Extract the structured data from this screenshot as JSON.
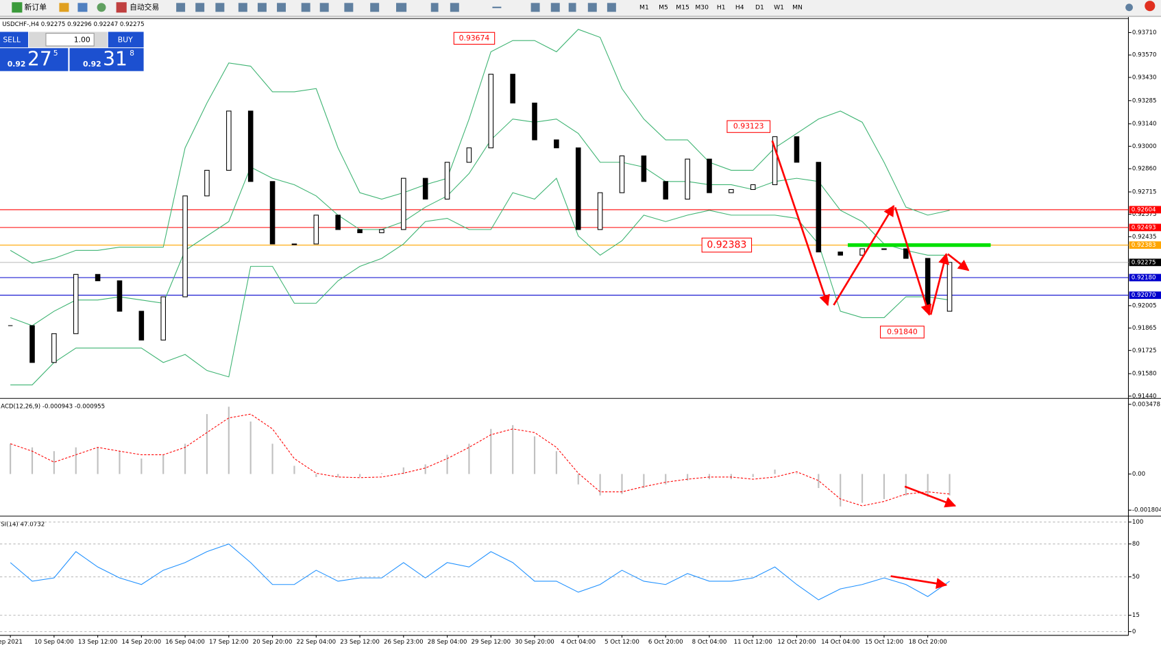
{
  "toolbar": {
    "new_order": "新订单",
    "auto_trading": "自动交易",
    "timeframes": [
      "M1",
      "M5",
      "M15",
      "M30",
      "H1",
      "H4",
      "D1",
      "W1",
      "MN"
    ]
  },
  "chart_header": "USDCHF-,H4  0.92275 0.92296 0.92247 0.92275",
  "trade_panel": {
    "sell": "SELL",
    "volume": "1.00",
    "buy": "BUY",
    "bid_prefix": "0.92",
    "bid_big": "27",
    "bid_small": "5",
    "ask_prefix": "0.92",
    "ask_big": "31",
    "ask_small": "8"
  },
  "chart_data": [
    {
      "type": "candlestick",
      "categories": [
        "ep 2021",
        null,
        "10 Sep 04:00",
        null,
        "13 Sep 12:00",
        null,
        "14 Sep 20:00",
        null,
        "16 Sep 04:00",
        null,
        "17 Sep 12:00",
        null,
        "20 Sep 20:00",
        null,
        "22 Sep 04:00",
        null,
        "23 Sep 12:00",
        null,
        "26 Sep 23:00",
        null,
        "28 Sep 04:00",
        null,
        "29 Sep 12:00",
        null,
        "30 Sep 20:00",
        null,
        "4 Oct 04:00",
        null,
        "5 Oct 12:00",
        null,
        "6 Oct 20:00",
        null,
        "8 Oct 04:00",
        null,
        "11 Oct 12:00",
        null,
        "12 Oct 20:00",
        null,
        "14 Oct 04:00",
        null,
        "15 Oct 12:00",
        null,
        "18 Oct 20:00",
        null
      ],
      "values": [
        0.9188,
        0.9165,
        0.9183,
        0.922,
        0.9216,
        0.9197,
        0.9179,
        0.9206,
        0.9269,
        0.9285,
        0.9322,
        0.9278,
        0.9239,
        0.9239,
        0.9257,
        0.9248,
        0.9246,
        0.9248,
        0.928,
        0.9267,
        0.929,
        0.9299,
        0.9345,
        0.9327,
        0.9304,
        0.9299,
        0.9248,
        0.9271,
        0.9294,
        0.9278,
        0.9267,
        0.9292,
        0.9271,
        0.9273,
        0.9276,
        0.9306,
        0.929,
        0.9234,
        0.9232,
        0.9236,
        0.9236,
        0.923,
        0.9197,
        0.92275
      ],
      "up_color": "#ffffff",
      "down_color": "#000000",
      "series": [
        {
          "color": "#3cb371",
          "values": [
            0.9235,
            0.9227,
            0.923,
            0.9235,
            0.9235,
            0.9237,
            0.9237,
            0.9237,
            0.9299,
            0.9327,
            0.9352,
            0.935,
            0.9334,
            0.9334,
            0.9336,
            0.9299,
            0.9271,
            0.9267,
            0.9271,
            0.9276,
            0.928,
            0.9317,
            0.9359,
            0.9366,
            0.9366,
            0.9359,
            0.9373,
            0.9368,
            0.9336,
            0.9317,
            0.9304,
            0.9304,
            0.929,
            0.9285,
            0.9285,
            0.9299,
            0.9308,
            0.9317,
            0.9322,
            0.9315,
            0.929,
            0.9262,
            0.9257,
            0.926
          ]
        },
        {
          "color": "#3cb371",
          "values": [
            0.9193,
            0.9188,
            0.9197,
            0.9204,
            0.9204,
            0.9206,
            0.9204,
            0.9202,
            0.9235,
            0.9244,
            0.9253,
            0.9287,
            0.928,
            0.9276,
            0.9269,
            0.9257,
            0.9248,
            0.9248,
            0.9253,
            0.9262,
            0.9269,
            0.9283,
            0.9304,
            0.9317,
            0.9315,
            0.9317,
            0.9308,
            0.929,
            0.929,
            0.9287,
            0.9278,
            0.9278,
            0.9276,
            0.9276,
            0.9273,
            0.9278,
            0.928,
            0.9278,
            0.926,
            0.9253,
            0.9239,
            0.9235,
            0.9232,
            0.9232
          ]
        },
        {
          "color": "#3cb371",
          "values": [
            0.9151,
            0.9151,
            0.9165,
            0.9174,
            0.9174,
            0.9174,
            0.9174,
            0.9165,
            0.917,
            0.916,
            0.9156,
            0.9225,
            0.9225,
            0.9202,
            0.9202,
            0.9216,
            0.9225,
            0.923,
            0.9239,
            0.9253,
            0.9255,
            0.9248,
            0.9248,
            0.9271,
            0.9267,
            0.928,
            0.9244,
            0.9232,
            0.9241,
            0.9257,
            0.9253,
            0.9257,
            0.926,
            0.9257,
            0.9257,
            0.9257,
            0.9255,
            0.9239,
            0.9197,
            0.9193,
            0.9193,
            0.9206,
            0.9206,
            0.9204
          ]
        }
      ],
      "ylim": [
        0.91435,
        0.93793
      ],
      "yticks": [
        {
          "value": 0.9371,
          "label": "0.93710"
        },
        {
          "value": 0.9357,
          "label": "0.93570"
        },
        {
          "value": 0.9343,
          "label": "0.93430"
        },
        {
          "value": 0.93285,
          "label": "0.93285"
        },
        {
          "value": 0.9314,
          "label": "0.93140"
        },
        {
          "value": 0.93,
          "label": "0.93000"
        },
        {
          "value": 0.9286,
          "label": "0.92860"
        },
        {
          "value": 0.92715,
          "label": "0.92715"
        },
        {
          "value": 0.92575,
          "label": "0.92575"
        },
        {
          "value": 0.92435,
          "label": "0.92435"
        },
        {
          "value": 0.92005,
          "label": "0.92005"
        },
        {
          "value": 0.91865,
          "label": "0.91865"
        },
        {
          "value": 0.91725,
          "label": "0.91725"
        },
        {
          "value": 0.9158,
          "label": "0.91580"
        },
        {
          "value": 0.9144,
          "label": "0.91440"
        }
      ],
      "levels": [
        {
          "value": 0.92604,
          "label": "0.92604",
          "color": "#ff0000",
          "box": "#ff0000"
        },
        {
          "value": 0.92493,
          "label": "0.92493",
          "color": "#ff0000",
          "box": "#ff0000"
        },
        {
          "value": 0.92383,
          "label": "0.92383",
          "color": "#ffa500",
          "box": "#ffa500"
        },
        {
          "value": 0.92275,
          "label": "0.92275",
          "color": "#c0c0c0",
          "box": "#000000"
        },
        {
          "value": 0.9218,
          "label": "0.92180",
          "color": "#0000cd",
          "box": "#0000cd"
        },
        {
          "value": 0.9207,
          "label": "0.92070",
          "color": "#0000cd",
          "box": "#0000cd"
        }
      ],
      "annotations": [
        0.93674,
        0.93123,
        0.92383,
        {
          "value": 0.9184,
          "label": "0.91840"
        }
      ]
    },
    {
      "type": "bar_line",
      "title": "ACD(12,26,9) -0.000943 -0.000955",
      "series": [
        {
          "color": "#c0c0c0",
          "values": [
            0.00151,
            0.00133,
            0.00114,
            0.00133,
            0.00133,
            0.00114,
            0.00077,
            0.00096,
            0.00151,
            0.00299,
            0.00336,
            0.00262,
            0.00151,
            0.00041,
            -0.00015,
            -0.00015,
            -0.00015,
            4e-05,
            0.00033,
            0.00048,
            0.00096,
            0.00151,
            0.00225,
            0.00244,
            0.00188,
            0.00114,
            -0.00052,
            -0.00107,
            -0.001,
            -0.0007,
            -0.00052,
            -0.00033,
            -0.00026,
            -0.00026,
            -0.00015,
            0.00022,
            4e-05,
            -0.0007,
            -0.00162,
            -0.00144,
            -0.00125,
            -0.00107,
            -0.00114,
            -0.00107
          ]
        },
        {
          "color": "#ff0000",
          "dashed": true,
          "values": [
            0.00151,
            0.00114,
            0.00059,
            0.00096,
            0.00133,
            0.00114,
            0.00096,
            0.00096,
            0.00133,
            0.00207,
            0.0028,
            0.00299,
            0.00225,
            0.00077,
            4e-05,
            -0.00015,
            -0.00018,
            -0.00015,
            4e-05,
            0.0003,
            0.00077,
            0.00133,
            0.00196,
            0.00225,
            0.00207,
            0.00133,
            4e-05,
            -0.00089,
            -0.00089,
            -0.00063,
            -0.00041,
            -0.00026,
            -0.00015,
            -0.00015,
            -0.00026,
            -0.00015,
            0.00011,
            -0.00033,
            -0.00125,
            -0.00159,
            -0.00137,
            -0.001,
            -0.00089,
            -0.001
          ]
        }
      ],
      "ylim": [
        -0.00203,
        0.0037
      ],
      "yticks": [
        0.003478,
        {
          "value": 0,
          "label": "0.00"
        },
        -0.001804
      ]
    },
    {
      "type": "line",
      "title": "SI(14) 47.0732",
      "series": [
        {
          "color": "#1e90ff",
          "values": [
            63,
            46,
            49,
            73,
            59,
            49,
            43,
            56,
            63,
            73,
            80,
            63,
            43,
            43,
            56,
            46,
            49,
            49,
            63,
            49,
            63,
            59,
            73,
            63,
            46,
            46,
            36,
            43,
            56,
            46,
            43,
            53,
            46,
            46,
            49,
            59,
            43,
            29,
            39,
            43,
            49,
            43,
            32,
            46
          ]
        }
      ],
      "ylim": [
        -3.4,
        104
      ],
      "yticks": [
        100,
        80,
        50,
        15,
        0
      ],
      "grid": true
    }
  ]
}
